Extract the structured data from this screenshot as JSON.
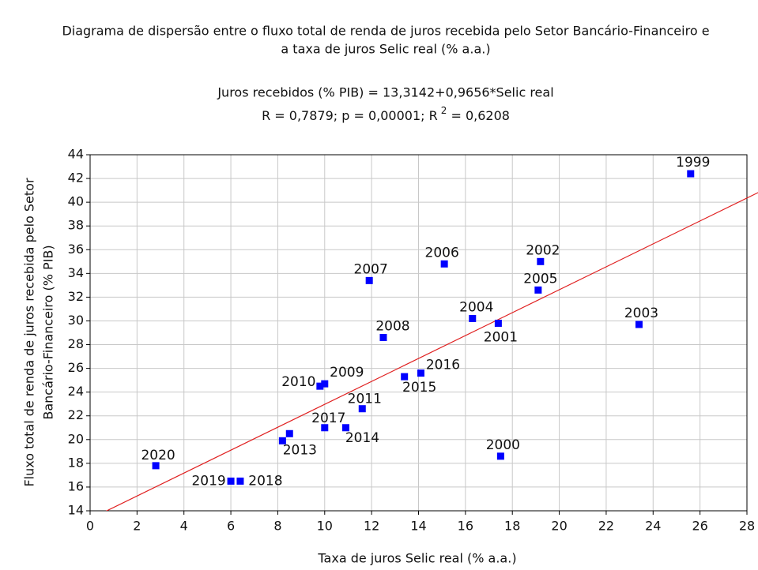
{
  "chart_data": {
    "type": "scatter",
    "title": [
      "Diagrama de dispersão entre o fluxo total de renda de juros recebida pelo Setor Bancário-Financeiro e",
      "a taxa de juros Selic real (% a.a.)"
    ],
    "equation": "Juros recebidos (% PIB) = 13,3142+0,9656*Selic real",
    "stats": [
      "R = 0,7879; p = 0,00001; R",
      "2",
      " = 0,6208"
    ],
    "trendline": {
      "intercept": 13.3142,
      "slope": 0.9656,
      "color": "#e02020"
    },
    "x_label": "Taxa de juros Selic real (% a.a.)",
    "y_label": [
      "Fluxo total de renda de juros recebida pelo Setor",
      "Bancário-Financeiro (% PIB)"
    ],
    "color": "#0000ff",
    "point_labels": [
      "1999",
      "2000",
      "2001",
      "2002",
      "2003",
      "2004",
      "2005",
      "2006",
      "2007",
      "2008",
      "2009",
      "2010",
      "2011",
      null,
      "2013",
      "2014",
      "2015",
      "2016",
      "2017",
      "2018",
      "2019",
      "2020"
    ],
    "x": [
      25.6,
      17.5,
      17.4,
      19.2,
      23.4,
      16.3,
      19.1,
      15.1,
      11.9,
      12.5,
      10.0,
      9.8,
      11.6,
      8.5,
      8.2,
      10.9,
      13.4,
      14.1,
      10.0,
      6.4,
      6.0,
      2.8
    ],
    "values": [
      42.4,
      18.6,
      29.8,
      35.0,
      29.7,
      30.2,
      32.6,
      34.8,
      33.4,
      28.6,
      24.7,
      24.5,
      22.6,
      20.5,
      19.9,
      21.0,
      25.3,
      25.6,
      21.0,
      16.5,
      16.5,
      17.8
    ],
    "xlim": [
      0,
      28
    ],
    "xticks": [
      0,
      2,
      4,
      6,
      8,
      10,
      12,
      14,
      16,
      18,
      20,
      22,
      24,
      26,
      28
    ],
    "ylim": [
      14,
      44
    ],
    "yticks": [
      14,
      16,
      18,
      20,
      22,
      24,
      26,
      28,
      30,
      32,
      34,
      36,
      38,
      40,
      42,
      44
    ],
    "grid": true
  }
}
